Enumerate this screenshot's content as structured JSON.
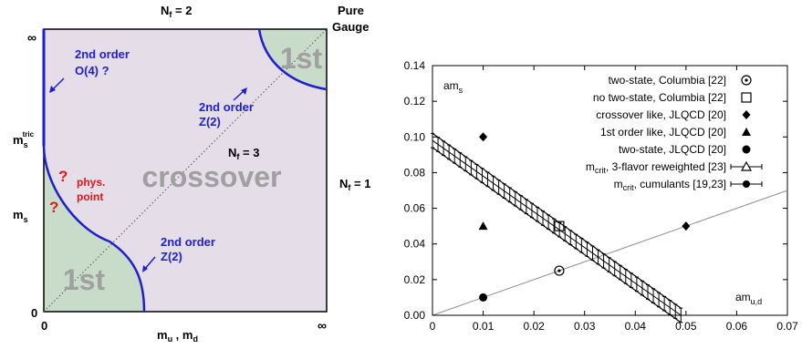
{
  "chart_data": [
    {
      "type": "diagram",
      "top_label_nf2": "N",
      "top_label_nf2_sub": "f",
      "top_label_nf2_eq": " = 2",
      "top_right_label_1": "Pure",
      "top_right_label_2": "Gauge",
      "right_label": "N",
      "right_label_sub": "f",
      "right_label_eq": " = 1",
      "diag_label": "N",
      "diag_label_sub": "f",
      "diag_label_eq": " = 3",
      "y_axis": {
        "inf": "∞",
        "ms_tric": "m",
        "ms_tric_sub": "s",
        "ms_tric_sup": "tric",
        "ms": "m",
        "ms_sub": "s",
        "zero": "0"
      },
      "x_axis": {
        "zero": "0",
        "label": "m",
        "label_sub1": "u",
        "label_mid": " , m",
        "label_sub2": "d",
        "inf": "∞"
      },
      "regions": {
        "first_order_top": "1st",
        "first_order_bottom": "1st",
        "crossover": "crossover"
      },
      "annotations": {
        "o4_line1": "2nd order",
        "o4_line2": "O(4) ?",
        "z2_top_line1": "2nd order",
        "z2_top_line2": "Z(2)",
        "z2_bottom_line1": "2nd order",
        "z2_bottom_line2": "Z(2)",
        "phys_point_line1": "phys.",
        "phys_point_line2": "point",
        "question_1": "?",
        "question_2": "?"
      },
      "colors": {
        "first_order_fill": "#c9dcc9",
        "crossover_fill": "#e5dde8",
        "boundary": "#1f1fd0",
        "question": "#e01818",
        "region_text": "#a0a0a0"
      }
    },
    {
      "type": "scatter",
      "xlim": [
        0,
        0.07
      ],
      "ylim": [
        0,
        0.14
      ],
      "x_ticks": [
        "0",
        "0.01",
        "0.02",
        "0.03",
        "0.04",
        "0.05",
        "0.06",
        "0.07"
      ],
      "y_ticks": [
        "0.00",
        "0.02",
        "0.04",
        "0.06",
        "0.08",
        "0.10",
        "0.12",
        "0.14"
      ],
      "ylabel": "am",
      "ylabel_sub": "s",
      "xlabel": "am",
      "xlabel_sub": "u,d",
      "legend_position": "top-right",
      "legend": [
        {
          "label": "two-state, Columbia [22]",
          "marker": "circle-dot"
        },
        {
          "label": "no two-state, Columbia [22]",
          "marker": "open-square"
        },
        {
          "label": "crossover like, JLQCD [20]",
          "marker": "filled-diamond"
        },
        {
          "label": "1st order like, JLQCD [20]",
          "marker": "filled-triangle"
        },
        {
          "label": "two-state, JLQCD [20]",
          "marker": "filled-circle"
        },
        {
          "label_prefix": "m",
          "label_sub": "crit",
          "label": ", 3-flavor reweighted [23]",
          "marker": "open-triangle-line"
        },
        {
          "label_prefix": "m",
          "label_sub": "crit",
          "label": ", cumulants [19,23]",
          "marker": "filled-circle-line"
        }
      ],
      "series": [
        {
          "marker": "circle-dot",
          "points": [
            [
              0.025,
              0.025
            ]
          ]
        },
        {
          "marker": "open-square",
          "points": [
            [
              0.025,
              0.05
            ]
          ]
        },
        {
          "marker": "filled-diamond",
          "points": [
            [
              0.01,
              0.1
            ],
            [
              0.05,
              0.05
            ]
          ]
        },
        {
          "marker": "filled-triangle",
          "points": [
            [
              0.01,
              0.05
            ]
          ]
        },
        {
          "marker": "filled-circle",
          "points": [
            [
              0.01,
              0.01
            ]
          ]
        }
      ],
      "diagonal_line": {
        "from": [
          0,
          0
        ],
        "to": [
          0.07,
          0.07
        ]
      },
      "critical_band": {
        "from": [
          0.0,
          0.098
        ],
        "to": [
          0.049,
          0.0
        ],
        "error": 0.004,
        "num_points": 46
      },
      "colors": {
        "axis": "#000000",
        "diagonal": "#909090"
      }
    }
  ]
}
